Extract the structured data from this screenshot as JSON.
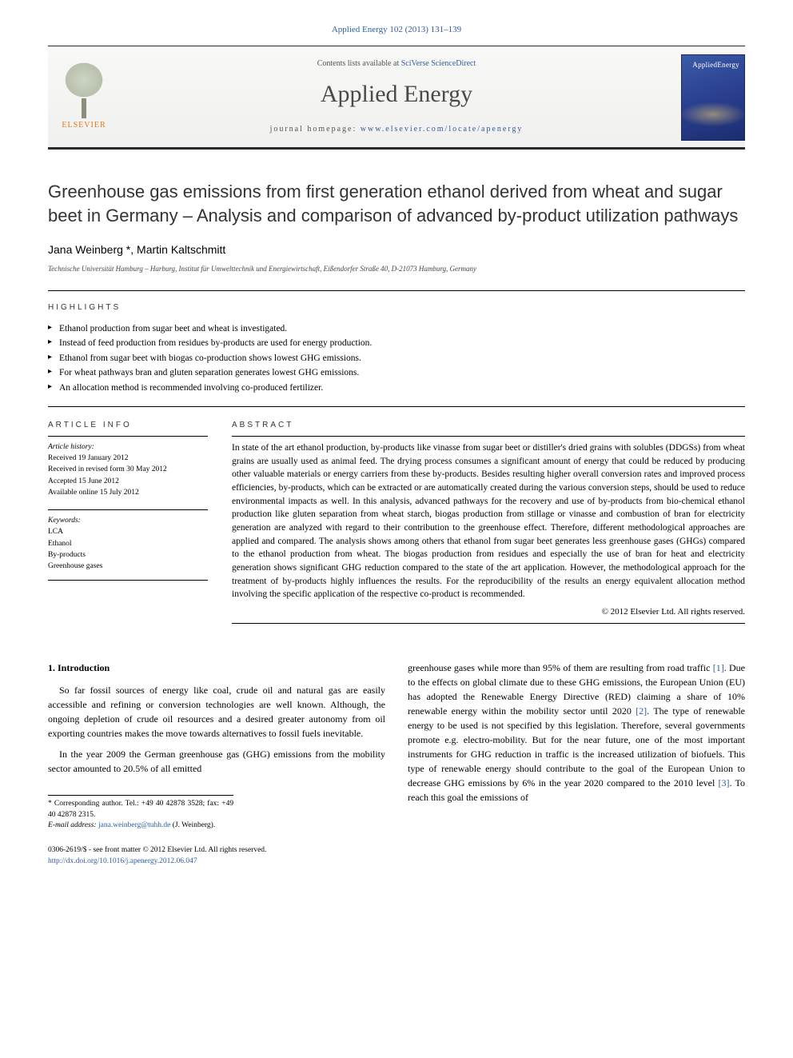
{
  "journal_ref": "Applied Energy 102 (2013) 131–139",
  "banner": {
    "contents_prefix": "Contents lists available at ",
    "contents_link": "SciVerse ScienceDirect",
    "journal_name": "Applied Energy",
    "homepage_prefix": "journal homepage: ",
    "homepage_link": "www.elsevier.com/locate/apenergy",
    "publisher_label": "ELSEVIER",
    "cover_title": "AppliedEnergy"
  },
  "title": "Greenhouse gas emissions from first generation ethanol derived from wheat and sugar beet in Germany – Analysis and comparison of advanced by-product utilization pathways",
  "authors": "Jana Weinberg *, Martin Kaltschmitt",
  "affiliation": "Technische Universität Hamburg – Harburg, Institut für Umwelttechnik und Energiewirtschaft, Eißendorfer Straße 40, D-21073 Hamburg, Germany",
  "highlights_label": "HIGHLIGHTS",
  "highlights": [
    "Ethanol production from sugar beet and wheat is investigated.",
    "Instead of feed production from residues by-products are used for energy production.",
    "Ethanol from sugar beet with biogas co-production shows lowest GHG emissions.",
    "For wheat pathways bran and gluten separation generates lowest GHG emissions.",
    "An allocation method is recommended involving co-produced fertilizer."
  ],
  "info_label": "ARTICLE INFO",
  "abstract_label": "ABSTRACT",
  "history": {
    "head": "Article history:",
    "received": "Received 19 January 2012",
    "revised": "Received in revised form 30 May 2012",
    "accepted": "Accepted 15 June 2012",
    "online": "Available online 15 July 2012"
  },
  "keywords": {
    "head": "Keywords:",
    "items": [
      "LCA",
      "Ethanol",
      "By-products",
      "Greenhouse gases"
    ]
  },
  "abstract": "In state of the art ethanol production, by-products like vinasse from sugar beet or distiller's dried grains with solubles (DDGSs) from wheat grains are usually used as animal feed. The drying process consumes a significant amount of energy that could be reduced by producing other valuable materials or energy carriers from these by-products. Besides resulting higher overall conversion rates and improved process efficiencies, by-products, which can be extracted or are automatically created during the various conversion steps, should be used to reduce environmental impacts as well. In this analysis, advanced pathways for the recovery and use of by-products from bio-chemical ethanol production like gluten separation from wheat starch, biogas production from stillage or vinasse and combustion of bran for electricity generation are analyzed with regard to their contribution to the greenhouse effect. Therefore, different methodological approaches are applied and compared. The analysis shows among others that ethanol from sugar beet generates less greenhouse gases (GHGs) compared to the ethanol production from wheat. The biogas production from residues and especially the use of bran for heat and electricity generation shows significant GHG reduction compared to the state of the art application. However, the methodological approach for the treatment of by-products highly influences the results. For the reproducibility of the results an energy equivalent allocation method involving the specific application of the respective co-product is recommended.",
  "copyright": "© 2012 Elsevier Ltd. All rights reserved.",
  "intro_heading": "1. Introduction",
  "intro_p1": "So far fossil sources of energy like coal, crude oil and natural gas are easily accessible and refining or conversion technologies are well known. Although, the ongoing depletion of crude oil resources and a desired greater autonomy from oil exporting countries makes the move towards alternatives to fossil fuels inevitable.",
  "intro_p2_a": "In the year 2009 the German greenhouse gas (GHG) emissions from the mobility sector amounted to 20.5% of all emitted",
  "intro_p2_b_1": "greenhouse gases while more than 95% of them are resulting from road traffic ",
  "intro_p2_b_2": ". Due to the effects on global climate due to these GHG emissions, the European Union (EU) has adopted the Renewable Energy Directive (RED) claiming a share of 10% renewable energy within the mobility sector until 2020 ",
  "intro_p2_b_3": ". The type of renewable energy to be used is not specified by this legislation. Therefore, several governments promote e.g. electro-mobility. But for the near future, one of the most important instruments for GHG reduction in traffic is the increased utilization of biofuels. This type of renewable energy should contribute to the goal of the European Union to decrease GHG emissions by 6% in the year 2020 compared to the 2010 level ",
  "intro_p2_b_4": ". To reach this goal the emissions of",
  "refs": {
    "r1": "[1]",
    "r2": "[2]",
    "r3": "[3]"
  },
  "footnote": {
    "corr": "* Corresponding author. Tel.: +49 40 42878 3528; fax: +49 40 42878 2315.",
    "email_label": "E-mail address: ",
    "email": "jana.weinberg@tuhh.de",
    "email_suffix": " (J. Weinberg)."
  },
  "footer": {
    "line1": "0306-2619/$ - see front matter © 2012 Elsevier Ltd. All rights reserved.",
    "doi": "http://dx.doi.org/10.1016/j.apenergy.2012.06.047"
  },
  "colors": {
    "link": "#2e5c9e",
    "elsevier_orange": "#e67817",
    "cover_bg": "#2a3f8f",
    "text": "#000000"
  }
}
